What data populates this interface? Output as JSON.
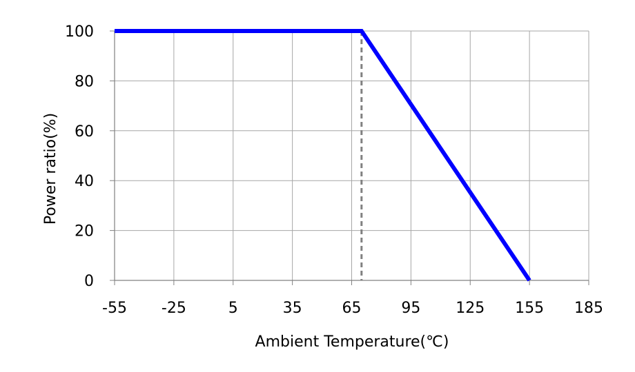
{
  "chart_data": {
    "type": "line",
    "title": "",
    "xlabel": "Ambient Temperature(℃)",
    "ylabel": "Power ratio(%)",
    "xlim": [
      -55,
      185
    ],
    "ylim": [
      0,
      100
    ],
    "x_ticks": [
      -55,
      -25,
      5,
      35,
      65,
      95,
      125,
      155,
      185
    ],
    "y_ticks": [
      0,
      20,
      40,
      60,
      80,
      100
    ],
    "grid": true,
    "legend": "none",
    "series": [
      {
        "x": [
          -55,
          70,
          155
        ],
        "y": [
          100,
          100,
          0
        ],
        "color": "#0000FF"
      }
    ],
    "reference_lines": [
      {
        "orientation": "vertical",
        "x": 70,
        "y_range": [
          0,
          100
        ],
        "style": "dashed",
        "color": "#808080"
      }
    ],
    "colors": {
      "grid": "#A6A6A6",
      "axis": "#808080",
      "series": "#0000FF",
      "reference": "#808080"
    }
  }
}
